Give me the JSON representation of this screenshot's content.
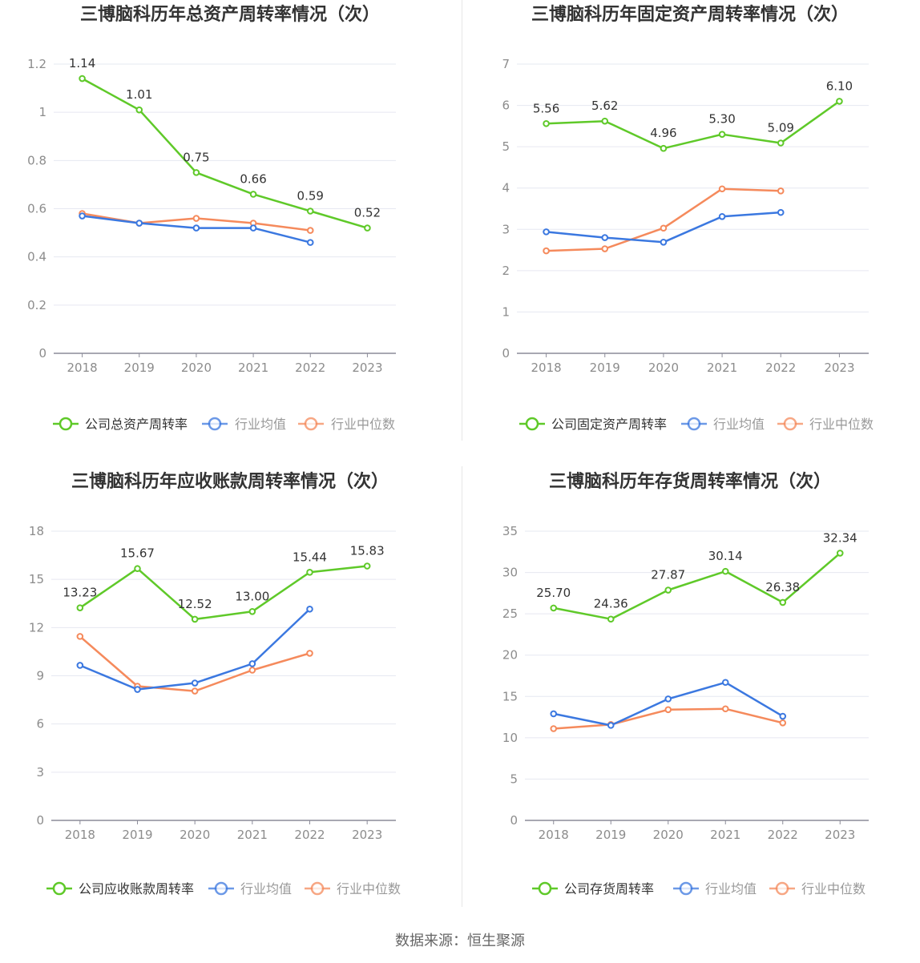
{
  "colors": {
    "company": "#5fc929",
    "avg": "#3b78e0",
    "median": "#f58a5c",
    "grid": "#e6e8f1",
    "axis": "#8c8c99",
    "tick_text": "#8c8c8c",
    "title": "#333333",
    "value_text": "#333333"
  },
  "source": "数据来源：恒生聚源",
  "chart_data": [
    {
      "type": "line",
      "title": "三博脑科历年总资产周转率情况（次）",
      "categories": [
        "2018",
        "2019",
        "2020",
        "2021",
        "2022",
        "2023"
      ],
      "ylim": [
        0,
        1.2
      ],
      "yticks": [
        "0",
        "0.2",
        "0.4",
        "0.6",
        "0.8",
        "1",
        "1.2"
      ],
      "grid": true,
      "legend_position": "bottom",
      "series": [
        {
          "name": "公司总资产周转率",
          "values": [
            1.14,
            1.01,
            0.75,
            0.66,
            0.59,
            0.52
          ],
          "labels": [
            "1.14",
            "1.01",
            "0.75",
            "0.66",
            "0.59",
            "0.52"
          ]
        },
        {
          "name": "行业均值",
          "values": [
            0.57,
            0.54,
            0.52,
            0.52,
            0.46,
            null
          ]
        },
        {
          "name": "行业中位数",
          "values": [
            0.58,
            0.54,
            0.56,
            0.54,
            0.51,
            null
          ]
        }
      ]
    },
    {
      "type": "line",
      "title": "三博脑科历年固定资产周转率情况（次）",
      "categories": [
        "2018",
        "2019",
        "2020",
        "2021",
        "2022",
        "2023"
      ],
      "ylim": [
        0,
        7
      ],
      "yticks": [
        "0",
        "1",
        "2",
        "3",
        "4",
        "5",
        "6",
        "7"
      ],
      "grid": true,
      "legend_position": "bottom",
      "series": [
        {
          "name": "公司固定资产周转率",
          "values": [
            5.56,
            5.62,
            4.96,
            5.3,
            5.09,
            6.1
          ],
          "labels": [
            "5.56",
            "5.62",
            "4.96",
            "5.30",
            "5.09",
            "6.10"
          ]
        },
        {
          "name": "行业均值",
          "values": [
            2.94,
            2.8,
            2.69,
            3.31,
            3.41,
            null
          ]
        },
        {
          "name": "行业中位数",
          "values": [
            2.48,
            2.53,
            3.03,
            3.98,
            3.93,
            null
          ]
        }
      ]
    },
    {
      "type": "line",
      "title": "三博脑科历年应收账款周转率情况（次）",
      "categories": [
        "2018",
        "2019",
        "2020",
        "2021",
        "2022",
        "2023"
      ],
      "ylim": [
        0,
        18
      ],
      "yticks": [
        "0",
        "3",
        "6",
        "9",
        "12",
        "15",
        "18"
      ],
      "grid": true,
      "legend_position": "bottom",
      "series": [
        {
          "name": "公司应收账款周转率",
          "values": [
            13.23,
            15.67,
            12.52,
            13.0,
            15.44,
            15.83
          ],
          "labels": [
            "13.23",
            "15.67",
            "12.52",
            "13.00",
            "15.44",
            "15.83"
          ]
        },
        {
          "name": "行业均值",
          "values": [
            9.65,
            8.15,
            8.55,
            9.75,
            13.15,
            null
          ]
        },
        {
          "name": "行业中位数",
          "values": [
            11.45,
            8.35,
            8.05,
            9.35,
            10.4,
            null
          ]
        }
      ]
    },
    {
      "type": "line",
      "title": "三博脑科历年存货周转率情况（次）",
      "categories": [
        "2018",
        "2019",
        "2020",
        "2021",
        "2022",
        "2023"
      ],
      "ylim": [
        0,
        35
      ],
      "yticks": [
        "0",
        "5",
        "10",
        "15",
        "20",
        "25",
        "30",
        "35"
      ],
      "grid": true,
      "legend_position": "bottom",
      "series": [
        {
          "name": "公司存货周转率",
          "values": [
            25.7,
            24.36,
            27.87,
            30.14,
            26.38,
            32.34
          ],
          "labels": [
            "25.70",
            "24.36",
            "27.87",
            "30.14",
            "26.38",
            "32.34"
          ]
        },
        {
          "name": "行业均值",
          "values": [
            12.9,
            11.5,
            14.7,
            16.7,
            12.6,
            null
          ]
        },
        {
          "name": "行业中位数",
          "values": [
            11.1,
            11.6,
            13.4,
            13.5,
            11.8,
            null
          ]
        }
      ]
    }
  ]
}
